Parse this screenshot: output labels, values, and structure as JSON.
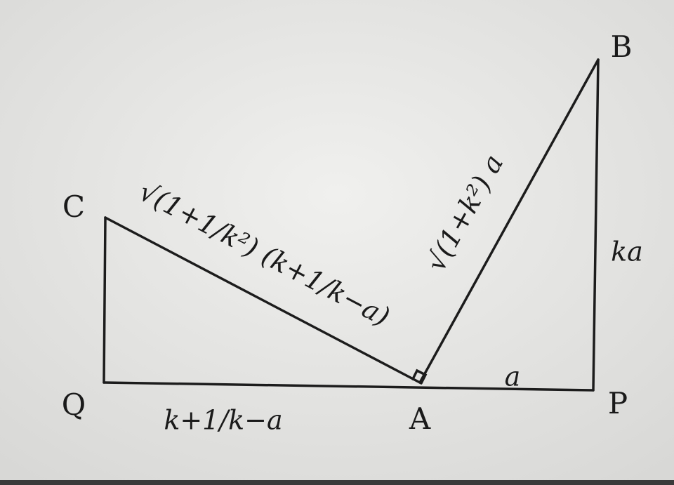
{
  "points": [
    {
      "label": "B"
    },
    {
      "label": "C"
    },
    {
      "label": "Q"
    },
    {
      "label": "A"
    },
    {
      "label": "P"
    }
  ],
  "edges": [
    {
      "label": "ka"
    },
    {
      "label": "a"
    },
    {
      "label": "k+1/k−a"
    },
    {
      "label": "√(1+k²) a"
    },
    {
      "label": "√(1+1/k²) (k+1/k−a)"
    }
  ]
}
